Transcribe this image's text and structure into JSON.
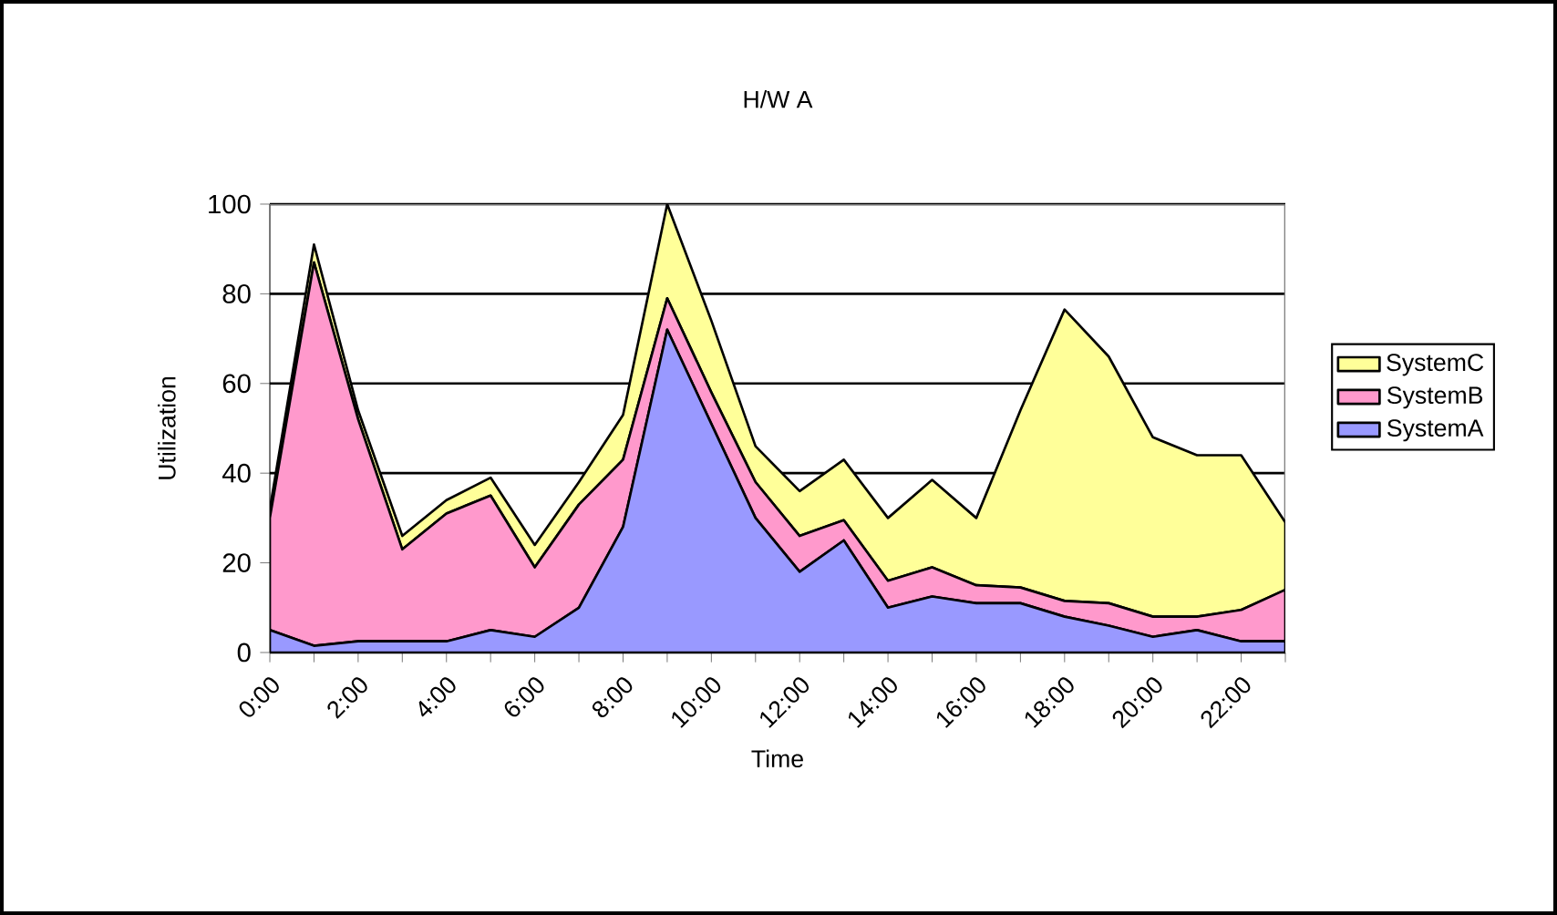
{
  "chart_data": {
    "type": "area",
    "stacked": true,
    "title": "H/W A",
    "xlabel": "Time",
    "ylabel": "Utilization",
    "categories": [
      "0:00",
      null,
      "2:00",
      null,
      "4:00",
      null,
      "6:00",
      null,
      "8:00",
      null,
      "10:00",
      null,
      "12:00",
      null,
      "14:00",
      null,
      "16:00",
      null,
      "18:00",
      null,
      "20:00",
      null,
      "22:00",
      null
    ],
    "series": [
      {
        "name": "SystemA",
        "color": "#9999ff",
        "values": [
          5,
          1.5,
          2.5,
          2.5,
          2.5,
          5,
          3.5,
          10,
          28,
          72,
          51,
          30,
          18,
          25,
          10,
          12.5,
          11,
          11,
          8,
          6,
          3.5,
          5,
          2.5,
          2.5
        ]
      },
      {
        "name": "SystemB",
        "color": "#ff99cc",
        "values": [
          25,
          85.5,
          49.5,
          20.5,
          28.5,
          30,
          15.5,
          23,
          15,
          7,
          7,
          8,
          8,
          4.5,
          6,
          6.5,
          4,
          3.5,
          3.5,
          5,
          4.5,
          3,
          7,
          11.5
        ]
      },
      {
        "name": "SystemC",
        "color": "#ffff99",
        "values": [
          2,
          4,
          2,
          3,
          3,
          4,
          5,
          5,
          10,
          21,
          16,
          8,
          10,
          13.5,
          14,
          19.5,
          15,
          39.5,
          65,
          55,
          40,
          36,
          34.5,
          15
        ]
      }
    ],
    "ylim": [
      0,
      100
    ],
    "yticks": [
      0,
      20,
      40,
      60,
      80,
      100
    ],
    "grid": "y",
    "legend": "right"
  }
}
